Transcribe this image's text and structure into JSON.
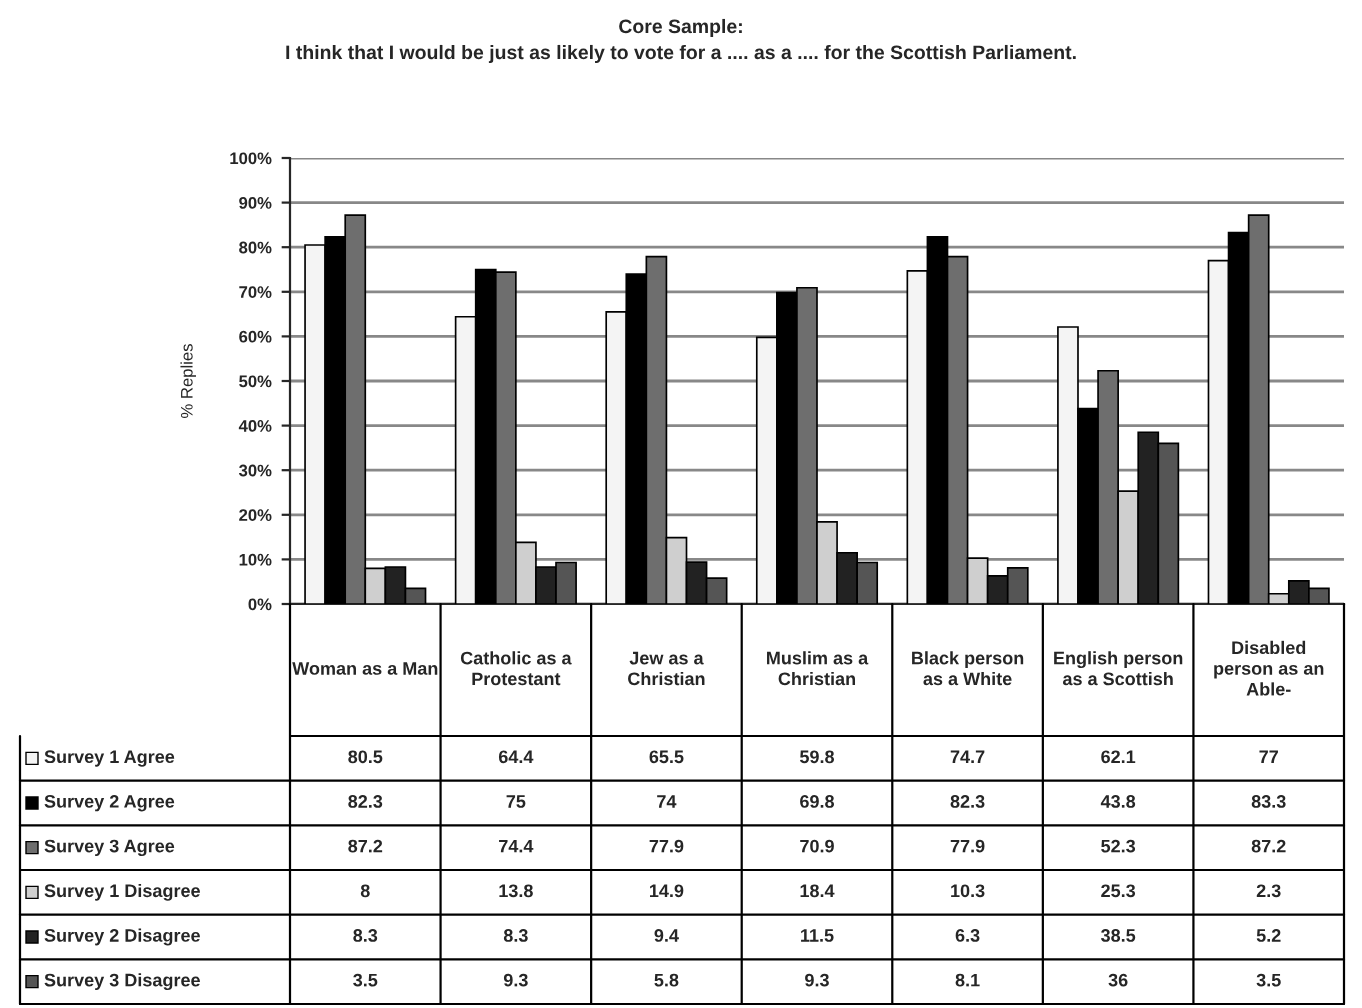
{
  "chart_data": {
    "type": "bar",
    "title": "Core Sample:",
    "subtitle": "I think that I would be just as likely to vote for a .... as a .... for the Scottish Parliament.",
    "ylabel": "% Replies",
    "categories": [
      "Woman as a Man",
      "Catholic as a Protestant",
      "Jew as a Christian",
      "Muslim as a Christian",
      "Black person as a White",
      "English person as a Scottish",
      "Disabled person as an Able-"
    ],
    "series": [
      {
        "name": "Survey 1 Agree",
        "color": "#f4f4f4",
        "values": [
          80.5,
          64.4,
          65.5,
          59.8,
          74.7,
          62.1,
          77
        ]
      },
      {
        "name": "Survey 2 Agree",
        "color": "#000000",
        "values": [
          82.3,
          75,
          74,
          69.8,
          82.3,
          43.8,
          83.3
        ]
      },
      {
        "name": "Survey 3 Agree",
        "color": "#6e6e6e",
        "values": [
          87.2,
          74.4,
          77.9,
          70.9,
          77.9,
          52.3,
          87.2
        ]
      },
      {
        "name": "Survey 1 Disagree",
        "color": "#cfcfcf",
        "values": [
          8,
          13.8,
          14.9,
          18.4,
          10.3,
          25.3,
          2.3
        ]
      },
      {
        "name": "Survey 2 Disagree",
        "color": "#222222",
        "values": [
          8.3,
          8.3,
          9.4,
          11.5,
          6.3,
          38.5,
          5.2
        ]
      },
      {
        "name": "Survey 3 Disagree",
        "color": "#555555",
        "values": [
          3.5,
          9.3,
          5.8,
          9.3,
          8.1,
          36,
          3.5
        ]
      }
    ],
    "ylim": [
      0,
      100
    ],
    "yticks": [
      {
        "value": 0,
        "label": "0%"
      },
      {
        "value": 10,
        "label": "10%"
      },
      {
        "value": 20,
        "label": "20%"
      },
      {
        "value": 30,
        "label": "30%"
      },
      {
        "value": 40,
        "label": "40%"
      },
      {
        "value": 50,
        "label": "50%"
      },
      {
        "value": 60,
        "label": "60%"
      },
      {
        "value": 70,
        "label": "70%"
      },
      {
        "value": 80,
        "label": "80%"
      },
      {
        "value": 90,
        "label": "90%"
      },
      {
        "value": 100,
        "label": "100%"
      }
    ],
    "grid": "y",
    "legend": "bottom",
    "data_labels": true
  }
}
